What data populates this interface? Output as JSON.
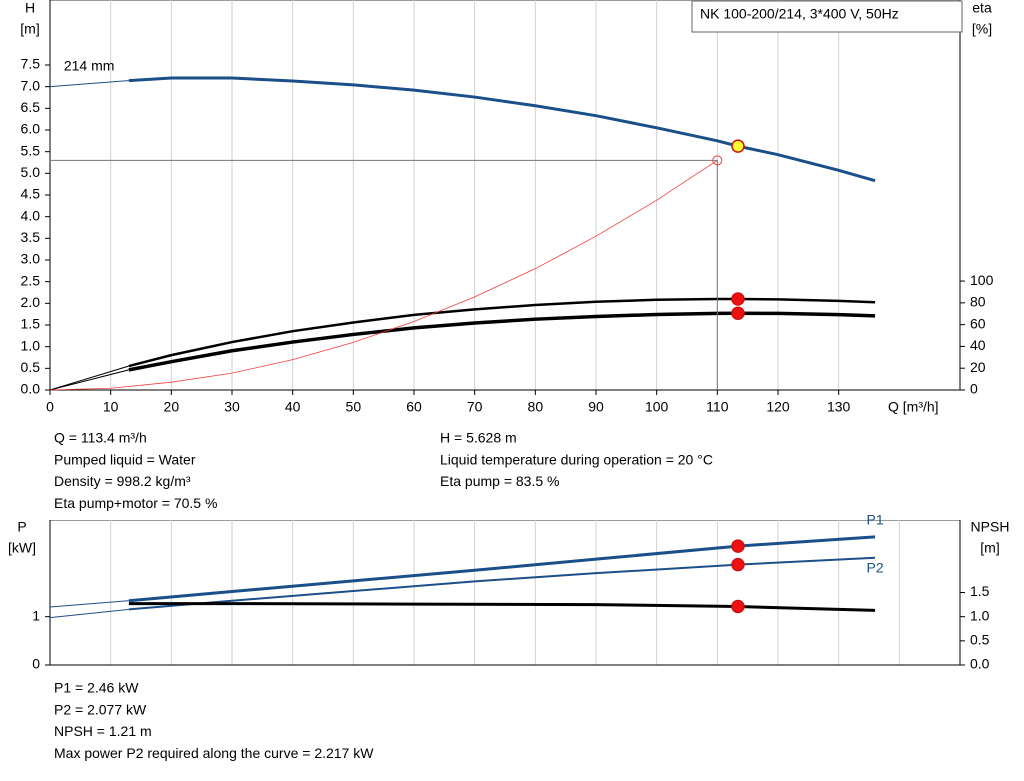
{
  "chart_data": [
    {
      "type": "line",
      "title": "NK 100-200/214, 3*400 V, 50Hz",
      "xlabel": "Q [m³/h]",
      "ylabel": "H",
      "yunit": "[m]",
      "y2label": "eta",
      "y2unit": "[%]",
      "xlim": [
        0,
        150
      ],
      "ylim": [
        0,
        9
      ],
      "y2lim": [
        0,
        358
      ],
      "xticks": [
        0,
        10,
        20,
        30,
        40,
        50,
        60,
        70,
        80,
        90,
        100,
        110,
        120,
        130
      ],
      "yticks": [
        {
          "value": 0,
          "label": "0.0"
        },
        0.5,
        {
          "value": 1,
          "label": "1.0"
        },
        1.5,
        {
          "value": 2,
          "label": "2.0"
        },
        2.5,
        {
          "value": 3,
          "label": "3.0"
        },
        3.5,
        {
          "value": 4,
          "label": "4.0"
        },
        4.5,
        {
          "value": 5,
          "label": "5.0"
        },
        5.5,
        {
          "value": 6,
          "label": "6.0"
        },
        6.5,
        {
          "value": 7,
          "label": "7.0"
        },
        7.5
      ],
      "y2ticks": [
        0,
        20,
        40,
        60,
        80,
        100
      ],
      "grid": true,
      "series": [
        {
          "x": [
            0,
            13
          ],
          "values": [
            7.0,
            7.14
          ],
          "color": "#1a4f8a",
          "width": 1
        },
        {
          "name": "214 mm",
          "x": [
            13,
            20,
            30,
            40,
            50,
            60,
            70,
            80,
            90,
            100,
            110,
            113.4,
            120,
            130,
            136
          ],
          "values": [
            7.14,
            7.2,
            7.2,
            7.13,
            7.04,
            6.92,
            6.76,
            6.56,
            6.33,
            6.05,
            5.75,
            5.628,
            5.43,
            5.07,
            4.83
          ],
          "color": "#1a4f8a",
          "width": 3
        },
        {
          "x": [
            0,
            13
          ],
          "values": [
            0,
            22
          ],
          "color": "#000000",
          "width": 1,
          "axis": "y2"
        },
        {
          "x": [
            13,
            20,
            30,
            40,
            50,
            60,
            70,
            80,
            90,
            100,
            110,
            113.4,
            120,
            130,
            136
          ],
          "values": [
            22,
            32,
            44,
            54,
            62,
            69,
            74,
            78,
            81,
            82.8,
            83.5,
            83.5,
            83.2,
            81.8,
            80.5
          ],
          "color": "#000000",
          "width": 2.5,
          "axis": "y2"
        },
        {
          "x": [
            0,
            13
          ],
          "values": [
            0,
            18.5
          ],
          "color": "#000000",
          "width": 1,
          "axis": "y2"
        },
        {
          "x": [
            13,
            20,
            30,
            40,
            50,
            60,
            70,
            80,
            90,
            100,
            110,
            113.4,
            120,
            130,
            136
          ],
          "values": [
            18.5,
            26,
            36,
            44,
            51,
            57,
            61.5,
            65,
            67.5,
            69.3,
            70.3,
            70.5,
            70.3,
            69.2,
            68
          ],
          "color": "#000000",
          "width": 3.5,
          "axis": "y2"
        },
        {
          "x": [
            0,
            10,
            20,
            30,
            40,
            50,
            60,
            70,
            80,
            90,
            100,
            110
          ],
          "values": [
            0,
            0.04,
            0.18,
            0.39,
            0.7,
            1.1,
            1.58,
            2.15,
            2.8,
            3.55,
            4.38,
            5.3
          ],
          "color": "#f03c3c",
          "width": 0.8
        }
      ],
      "points": [
        {
          "x": 110,
          "value": 5.3,
          "color": "#f03c3c",
          "hollow": true,
          "guide": true
        },
        {
          "x": 113.4,
          "value": 5.628,
          "color": "#ffff33"
        },
        {
          "x": 113.4,
          "value": 83.5,
          "color": "#ee1111",
          "axis": "y2"
        },
        {
          "x": 113.4,
          "value": 70.5,
          "color": "#ee1111",
          "axis": "y2"
        }
      ]
    },
    {
      "type": "line",
      "ylabel": "P",
      "yunit": "[kW]",
      "y2label": "NPSH",
      "y2unit": "[m]",
      "xlim": [
        0,
        150
      ],
      "ylim": [
        0,
        3
      ],
      "y2lim": [
        0,
        3
      ],
      "xticks": [
        0,
        10,
        20,
        30,
        40,
        50,
        60,
        70,
        80,
        90,
        100,
        110,
        120,
        130,
        140
      ],
      "xtick_labels": false,
      "yticks": [
        0,
        1
      ],
      "y2ticks": [
        {
          "value": 0,
          "label": "0.0"
        },
        0.5,
        {
          "value": 1,
          "label": "1.0"
        },
        1.5
      ],
      "grid": true,
      "series": [
        {
          "x": [
            0,
            13
          ],
          "values": [
            1.2,
            1.33
          ],
          "color": "#1a4f8a",
          "width": 1
        },
        {
          "name": "P1",
          "x": [
            13,
            30,
            50,
            70,
            90,
            113.4,
            136
          ],
          "values": [
            1.33,
            1.52,
            1.74,
            1.96,
            2.19,
            2.46,
            2.65
          ],
          "color": "#1a4f8a",
          "width": 3
        },
        {
          "x": [
            0,
            13
          ],
          "values": [
            0.98,
            1.15
          ],
          "color": "#1a4f8a",
          "width": 1
        },
        {
          "name": "P2",
          "x": [
            13,
            30,
            50,
            70,
            90,
            113.4,
            136
          ],
          "values": [
            1.15,
            1.33,
            1.53,
            1.73,
            1.9,
            2.077,
            2.22
          ],
          "color": "#1a4f8a",
          "width": 2
        },
        {
          "x": [
            13,
            30,
            60,
            90,
            113.4,
            136
          ],
          "values": [
            1.27,
            1.27,
            1.26,
            1.25,
            1.21,
            1.13
          ],
          "color": "#000000",
          "width": 3,
          "axis": "y2"
        }
      ],
      "points": [
        {
          "x": 113.4,
          "value": 2.46,
          "color": "#ee1111"
        },
        {
          "x": 113.4,
          "value": 2.077,
          "color": "#ee1111"
        },
        {
          "x": 113.4,
          "value": 1.21,
          "color": "#ee1111",
          "axis": "y2"
        }
      ]
    }
  ],
  "info": {
    "top_left": [
      "Q = 113.4 m³/h",
      "Pumped liquid = Water",
      "Density = 998.2 kg/m³",
      "Eta pump+motor = 70.5 %"
    ],
    "top_right": [
      "H = 5.628 m",
      "Liquid temperature during operation = 20 °C",
      "Eta pump = 83.5 %"
    ],
    "bottom": [
      "P1 = 2.46 kW",
      "P2 = 2.077 kW",
      "NPSH = 1.21 m",
      "Max power P2 required along the curve = 2.217 kW"
    ]
  }
}
